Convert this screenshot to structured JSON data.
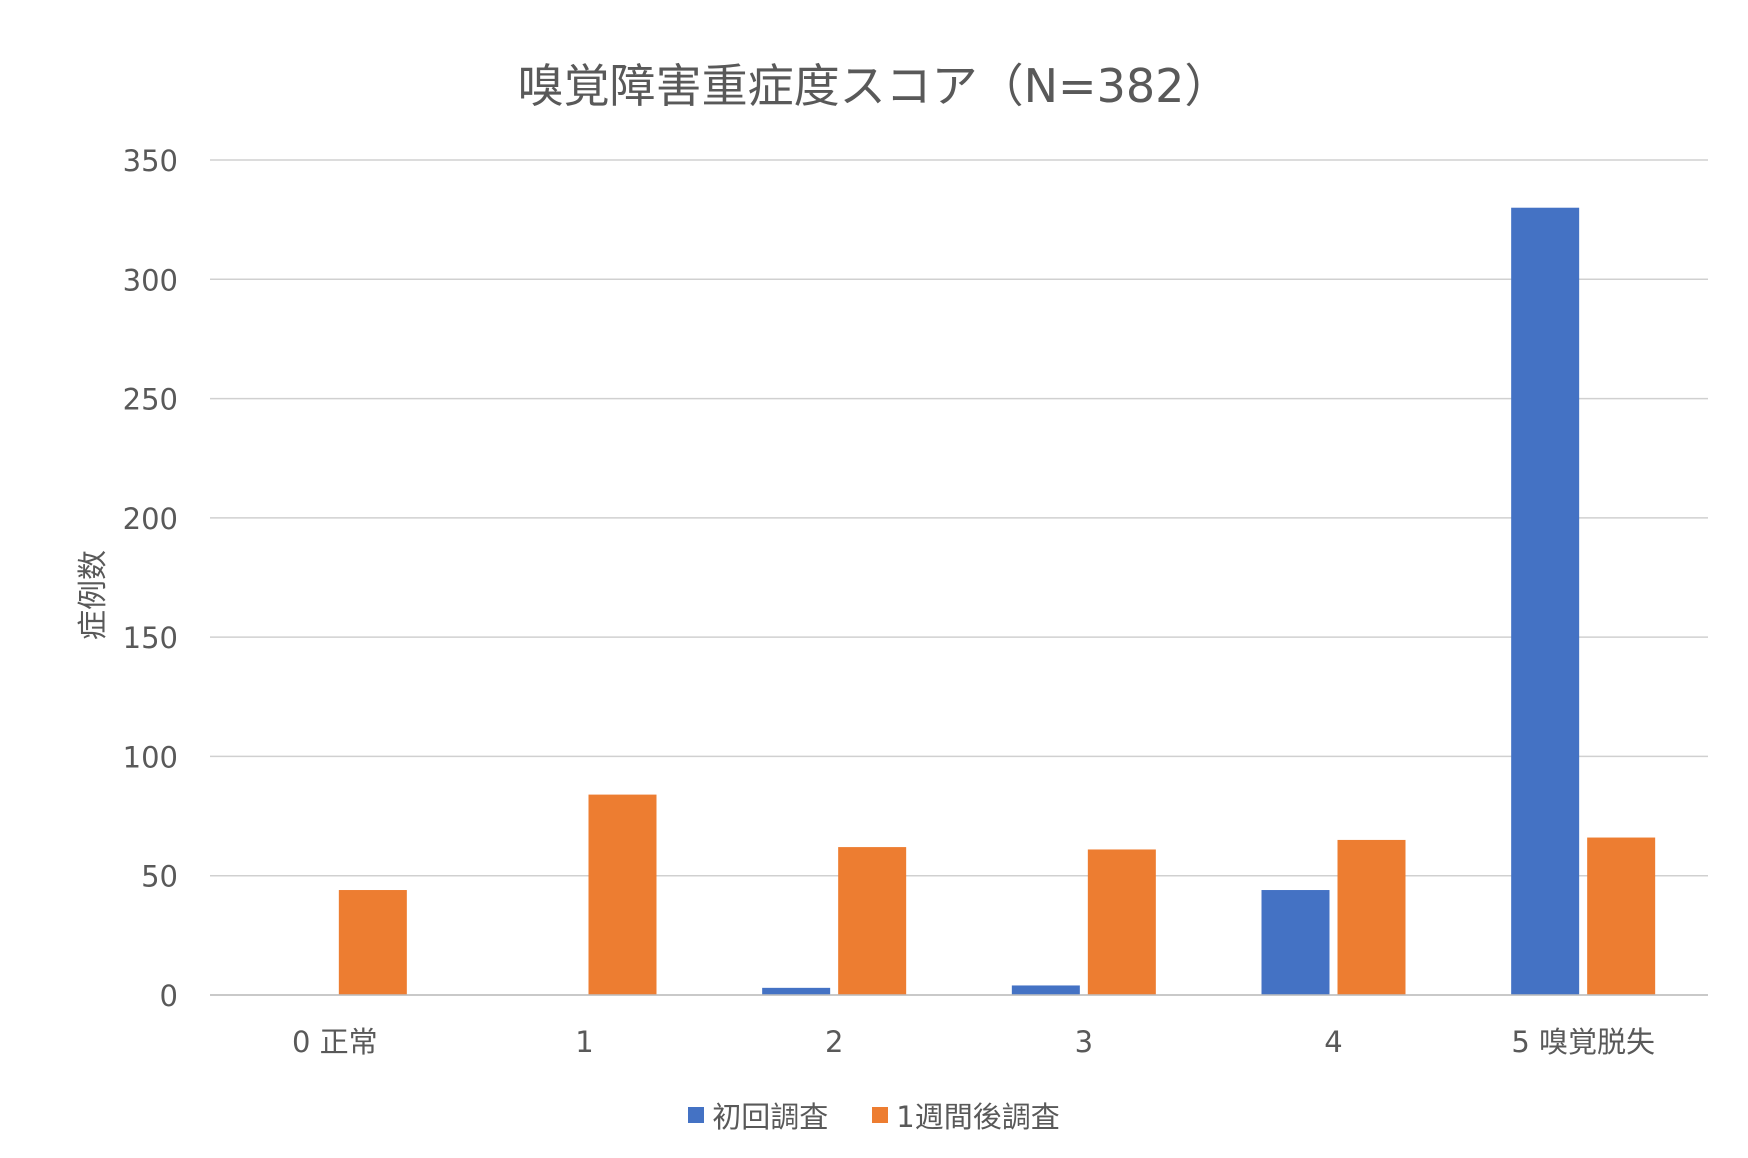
{
  "chart_data": {
    "type": "bar",
    "title": "嗅覚障害重症度スコア（N=382）",
    "xlabel": "",
    "ylabel": "症例数",
    "ylim": [
      0,
      350
    ],
    "yticks": [
      "0",
      "50",
      "100",
      "150",
      "200",
      "250",
      "300",
      "350"
    ],
    "categories": [
      "0 正常",
      "1",
      "2",
      "3",
      "4",
      "5 嗅覚脱失"
    ],
    "series": [
      {
        "name": "初回調査",
        "color": "#4472C4",
        "values": [
          0,
          0,
          3,
          4,
          44,
          330
        ]
      },
      {
        "name": "1週間後調査",
        "color": "#ED7D31",
        "values": [
          44,
          84,
          62,
          61,
          65,
          66
        ]
      }
    ],
    "grid": true,
    "legend": "bottom"
  }
}
